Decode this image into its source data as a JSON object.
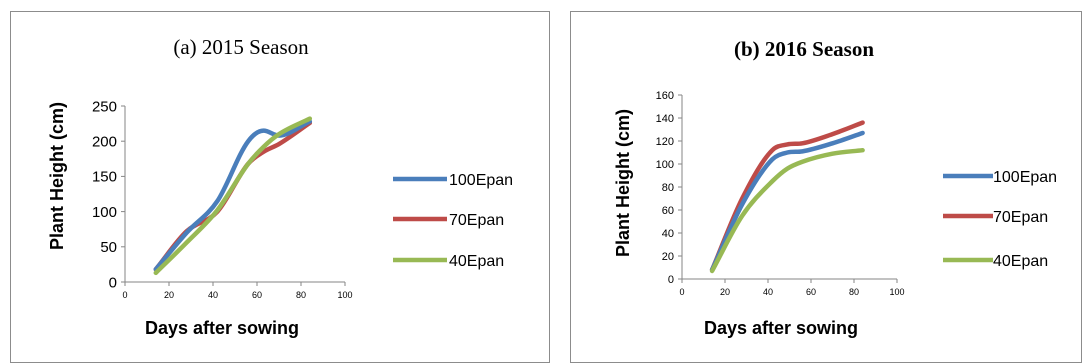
{
  "chart_data": [
    {
      "type": "line",
      "title": "(a) 2015 Season",
      "xlabel": "Days after sowing",
      "ylabel": "Plant Height (cm)",
      "xlim": [
        0,
        100
      ],
      "ylim": [
        0,
        250
      ],
      "xticks": [
        "0",
        "20",
        "40",
        "60",
        "80",
        "100"
      ],
      "yticks": [
        "0",
        "50",
        "100",
        "150",
        "200",
        "250"
      ],
      "legend_position": "right",
      "grid": false,
      "series": [
        {
          "name": "100Epan",
          "color": "#4a7ebb",
          "x": [
            14,
            28,
            42,
            56,
            63,
            70,
            84
          ],
          "y": [
            18,
            70,
            115,
            200,
            215,
            208,
            228
          ]
        },
        {
          "name": "70Epan",
          "color": "#be4b48",
          "x": [
            14,
            28,
            42,
            56,
            63,
            70,
            84
          ],
          "y": [
            18,
            72,
            100,
            168,
            185,
            196,
            226
          ]
        },
        {
          "name": "40Epan",
          "color": "#98b954",
          "x": [
            14,
            28,
            42,
            56,
            63,
            70,
            84
          ],
          "y": [
            13,
            56,
            102,
            168,
            192,
            210,
            232
          ]
        }
      ]
    },
    {
      "type": "line",
      "title": "(b) 2016 Season",
      "xlabel": "Days after sowing",
      "ylabel": "Plant Height (cm)",
      "xlim": [
        0,
        100
      ],
      "ylim": [
        0,
        160
      ],
      "xticks": [
        "0",
        "20",
        "40",
        "60",
        "80",
        "100"
      ],
      "yticks": [
        "0",
        "20",
        "40",
        "60",
        "80",
        "100",
        "120",
        "140",
        "160"
      ],
      "legend_position": "right",
      "grid": false,
      "series": [
        {
          "name": "100Epan",
          "color": "#4a7ebb",
          "x": [
            14,
            28,
            42,
            49,
            56,
            70,
            84
          ],
          "y": [
            8,
            65,
            104,
            110,
            111,
            118,
            127
          ]
        },
        {
          "name": "70Epan",
          "color": "#be4b48",
          "x": [
            14,
            28,
            42,
            49,
            56,
            70,
            84
          ],
          "y": [
            8,
            70,
            112,
            117,
            118,
            126,
            136
          ]
        },
        {
          "name": "40Epan",
          "color": "#98b954",
          "x": [
            14,
            28,
            42,
            49,
            56,
            70,
            84
          ],
          "y": [
            7,
            55,
            85,
            96,
            102,
            109,
            112
          ]
        }
      ]
    }
  ]
}
